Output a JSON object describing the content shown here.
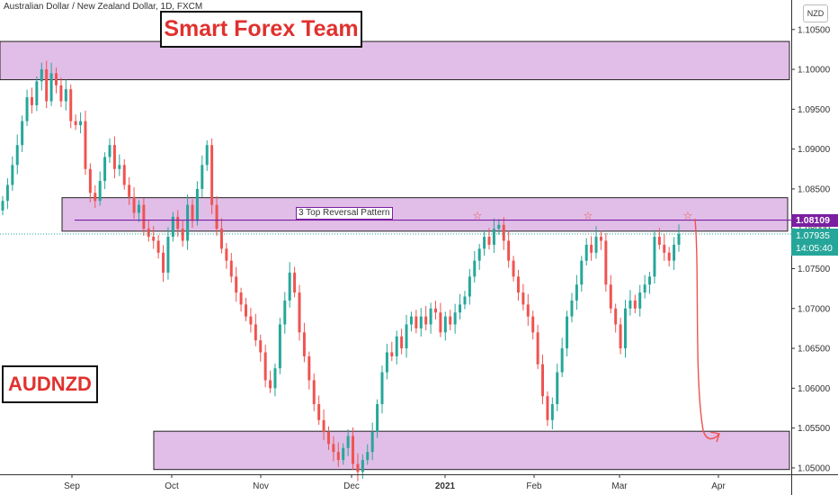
{
  "header": {
    "title": "Australian Dollar / New Zealand Dollar, 1D, FXCM"
  },
  "annotations": {
    "brand": "Smart Forex Team",
    "ticker": "AUDNZD",
    "pattern_label": "3 Top Reversal Pattern",
    "star_marks": [
      "☆",
      "☆",
      "☆"
    ]
  },
  "price_axis": {
    "currency_button": "NZD",
    "resistance_tag": "1.08109",
    "last_price": "1.07935",
    "countdown": "14:05:40"
  },
  "colors": {
    "up": "#26a69a",
    "down": "#ef5350",
    "zone_fill": "#e1bee7",
    "resistance_line": "#7b1fa2",
    "arrow": "#ef5350"
  },
  "chart_data": {
    "type": "candlestick",
    "symbol": "AUDNZD",
    "timeframe": "1D",
    "ylim": [
      1.0492,
      1.1087
    ],
    "y_ticks": [
      "1.10500",
      "1.10000",
      "1.09500",
      "1.09000",
      "1.08500",
      "1.08000",
      "1.07500",
      "1.07000",
      "1.06500",
      "1.06000",
      "1.05500",
      "1.05000"
    ],
    "x_ticks": [
      "Sep",
      "Oct",
      "Nov",
      "Dec",
      "2021",
      "Feb",
      "Mar",
      "Apr"
    ],
    "zones": [
      {
        "from": 1.0987,
        "to": 1.1035
      },
      {
        "from": 1.0797,
        "to": 1.0839
      },
      {
        "from": 1.0498,
        "to": 1.0546
      }
    ],
    "resistance_level": 1.08109,
    "last_price": 1.07935,
    "closes": [
      1.0835,
      1.0855,
      1.088,
      1.0905,
      1.0935,
      1.0965,
      1.0955,
      1.0985,
      1.1,
      1.096,
      1.0995,
      1.098,
      1.096,
      1.0975,
      1.0935,
      1.093,
      1.0935,
      1.0875,
      1.0845,
      1.0835,
      1.086,
      1.089,
      1.0905,
      1.0875,
      1.088,
      1.0855,
      1.084,
      1.082,
      1.083,
      1.08,
      1.079,
      1.0785,
      1.077,
      1.0745,
      1.079,
      1.0815,
      1.08,
      1.0785,
      1.083,
      1.081,
      1.085,
      1.088,
      1.0905,
      1.083,
      1.08,
      1.0775,
      1.076,
      1.074,
      1.072,
      1.0705,
      1.069,
      1.068,
      1.066,
      1.0645,
      1.061,
      1.06,
      1.0625,
      1.068,
      1.071,
      1.0745,
      1.072,
      1.067,
      1.064,
      1.061,
      1.058,
      1.056,
      1.0545,
      1.053,
      1.052,
      1.051,
      1.0525,
      1.054,
      1.0505,
      1.0495,
      1.051,
      1.052,
      1.0545,
      1.058,
      1.062,
      1.0645,
      1.064,
      1.0665,
      1.065,
      1.068,
      1.069,
      1.0675,
      1.069,
      1.068,
      1.07,
      1.0695,
      1.067,
      1.069,
      1.068,
      1.0695,
      1.0705,
      1.0715,
      1.074,
      1.076,
      1.0775,
      1.079,
      1.078,
      1.08,
      1.0805,
      1.0785,
      1.076,
      1.074,
      1.072,
      1.0705,
      1.069,
      1.067,
      1.063,
      1.059,
      1.056,
      1.058,
      1.062,
      1.065,
      1.069,
      1.071,
      1.073,
      1.076,
      1.078,
      1.077,
      1.079,
      1.0785,
      1.073,
      1.07,
      1.068,
      1.065,
      1.07,
      1.071,
      1.07,
      1.072,
      1.073,
      1.074,
      1.079,
      1.078,
      1.077,
      1.076,
      1.078,
      1.07935
    ]
  }
}
